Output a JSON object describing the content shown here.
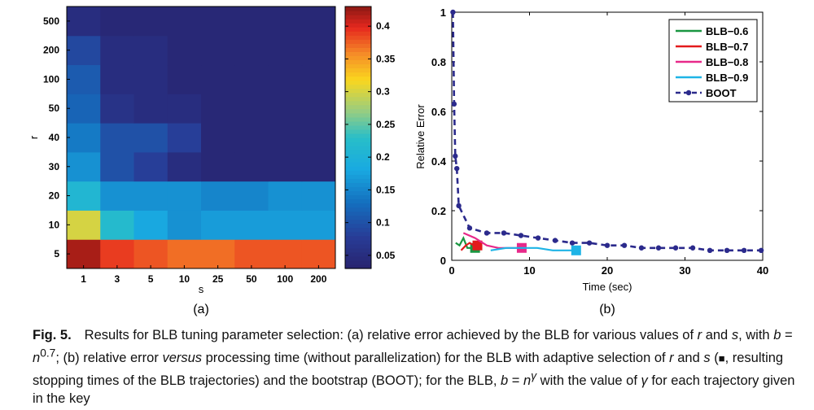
{
  "chart_data": [
    {
      "type": "heatmap",
      "panel_label": "(a)",
      "xlabel": "s",
      "ylabel": "r",
      "x_categories": [
        "1",
        "3",
        "5",
        "10",
        "25",
        "50",
        "100",
        "200"
      ],
      "y_categories": [
        "5",
        "10",
        "20",
        "30",
        "40",
        "50",
        "100",
        "200",
        "500"
      ],
      "values": [
        [
          0.42,
          0.39,
          0.38,
          0.37,
          0.37,
          0.38,
          0.38,
          0.38
        ],
        [
          0.3,
          0.22,
          0.18,
          0.16,
          0.17,
          0.17,
          0.17,
          0.17
        ],
        [
          0.21,
          0.16,
          0.16,
          0.16,
          0.15,
          0.15,
          0.16,
          0.16
        ],
        [
          0.16,
          0.1,
          0.08,
          0.05,
          0.04,
          0.04,
          0.04,
          0.04
        ],
        [
          0.14,
          0.1,
          0.1,
          0.08,
          0.04,
          0.04,
          0.04,
          0.04
        ],
        [
          0.12,
          0.06,
          0.05,
          0.05,
          0.04,
          0.04,
          0.04,
          0.04
        ],
        [
          0.11,
          0.05,
          0.05,
          0.04,
          0.04,
          0.04,
          0.04,
          0.04
        ],
        [
          0.09,
          0.05,
          0.05,
          0.04,
          0.04,
          0.04,
          0.04,
          0.04
        ],
        [
          0.05,
          0.04,
          0.04,
          0.04,
          0.04,
          0.04,
          0.04,
          0.04
        ]
      ],
      "colorbar": {
        "range": [
          0.03,
          0.43
        ],
        "ticks": [
          0.05,
          0.1,
          0.15,
          0.2,
          0.25,
          0.3,
          0.35,
          0.4
        ],
        "tick_labels": [
          "0.05",
          "0.1",
          "0.15",
          "0.2",
          "0.25",
          "0.3",
          "0.35",
          "0.4"
        ]
      }
    },
    {
      "type": "line",
      "panel_label": "(b)",
      "xlabel": "Time (sec)",
      "ylabel": "Relative Error",
      "xlim": [
        0,
        40
      ],
      "ylim": [
        0,
        1
      ],
      "x_ticks": [
        0,
        10,
        20,
        30,
        40
      ],
      "y_ticks": [
        0,
        0.2,
        0.4,
        0.6,
        0.8,
        1
      ],
      "y_tick_labels": [
        "0",
        "0.2",
        "0.4",
        "0.6",
        "0.8",
        "1"
      ],
      "legend_position": "top-right",
      "series": [
        {
          "name": "BLB−0.6",
          "color": "#1a9641",
          "style": "solid",
          "end_marker": "square",
          "x": [
            0.5,
            1.0,
            1.5,
            2.0,
            2.5,
            3.0
          ],
          "y": [
            0.07,
            0.06,
            0.09,
            0.05,
            0.05,
            0.05
          ]
        },
        {
          "name": "BLB−0.7",
          "color": "#e31a1c",
          "style": "solid",
          "end_marker": "square",
          "x": [
            1.2,
            1.8,
            2.3,
            2.8,
            3.3
          ],
          "y": [
            0.04,
            0.06,
            0.07,
            0.06,
            0.06
          ]
        },
        {
          "name": "BLB−0.8",
          "color": "#e7298a",
          "style": "solid",
          "end_marker": "square",
          "x": [
            1.5,
            3.0,
            4.5,
            6.0,
            7.5,
            9.0
          ],
          "y": [
            0.11,
            0.09,
            0.06,
            0.05,
            0.05,
            0.05
          ]
        },
        {
          "name": "BLB−0.9",
          "color": "#1eb4e6",
          "style": "solid",
          "end_marker": "square",
          "x": [
            5.0,
            7.0,
            9.0,
            11.0,
            13.0,
            14.5,
            16.0
          ],
          "y": [
            0.04,
            0.05,
            0.05,
            0.05,
            0.04,
            0.04,
            0.04
          ]
        },
        {
          "name": "BOOT",
          "color": "#2b2a8c",
          "style": "dashed",
          "marker": "circle",
          "x": [
            0.15,
            0.3,
            0.45,
            0.65,
            0.9,
            2.3,
            4.5,
            6.7,
            8.9,
            11.1,
            13.3,
            15.5,
            17.7,
            20.0,
            22.2,
            24.4,
            26.6,
            28.8,
            31.0,
            33.2,
            35.4,
            37.6,
            39.8
          ],
          "y": [
            1.0,
            0.63,
            0.42,
            0.37,
            0.22,
            0.13,
            0.11,
            0.11,
            0.1,
            0.09,
            0.08,
            0.07,
            0.07,
            0.06,
            0.06,
            0.05,
            0.05,
            0.05,
            0.05,
            0.04,
            0.04,
            0.04,
            0.04
          ]
        }
      ]
    }
  ],
  "caption": {
    "label": "Fig. 5.",
    "parts": [
      {
        "t": "Results for BLB tuning parameter selection: (a) relative error achieved by the BLB for various values of "
      },
      {
        "t": "r",
        "i": true
      },
      {
        "t": " and "
      },
      {
        "t": "s",
        "i": true
      },
      {
        "t": ", with "
      },
      {
        "t": "b",
        "i": true
      },
      {
        "t": " = "
      },
      {
        "t": "n",
        "i": true
      },
      {
        "t": "0.7",
        "sup": true
      },
      {
        "t": "; (b) relative error "
      },
      {
        "t": "versus",
        "i": true
      },
      {
        "t": " processing time (without parallelization) for the BLB with adaptive selection of "
      },
      {
        "t": "r",
        "i": true
      },
      {
        "t": " and "
      },
      {
        "t": "s",
        "i": true
      },
      {
        "t": " ("
      },
      {
        "t": "■",
        "cls": "sq"
      },
      {
        "t": ", resulting stopping times of the BLB trajectories) and the bootstrap (BOOT); for the BLB, "
      },
      {
        "t": "b",
        "i": true
      },
      {
        "t": " = "
      },
      {
        "t": "n",
        "i": true
      },
      {
        "t": "γ",
        "sup": true,
        "i": true
      },
      {
        "t": " with the value of "
      },
      {
        "t": "γ",
        "i": true
      },
      {
        "t": " for each trajectory given in the key"
      }
    ]
  }
}
